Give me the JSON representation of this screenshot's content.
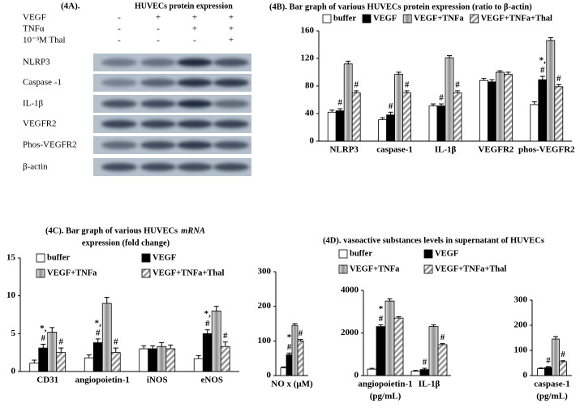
{
  "blot": {
    "label": "(4A).",
    "heading": "HUVECs  protein expression",
    "conditions": [
      {
        "name": "VEGF",
        "signs": [
          "-",
          "+",
          "+",
          "+"
        ]
      },
      {
        "name": "TNFα",
        "signs": [
          "-",
          "-",
          "+",
          "+"
        ]
      },
      {
        "name": "10⁻³M Thal",
        "signs": [
          "-",
          "-",
          "-",
          "+"
        ]
      }
    ],
    "bands": [
      "NLRP3",
      "Caspase -1",
      "IL-1β",
      "VEGFR2",
      "Phos-VEGFR2",
      "β-actin"
    ]
  },
  "chart_data": [
    {
      "type": "bar",
      "title": "(4B). Bar graph of various  HUVECs protein expression (ratio to β-actin)",
      "categories": [
        "NLRP3",
        "caspase-1",
        "IL-1β",
        "VEGFR2",
        "phos-VEGFR2"
      ],
      "ylim": [
        0,
        160
      ],
      "yticks": [
        0,
        40,
        80,
        120,
        160
      ],
      "legend": "top-row",
      "series": [
        {
          "name": "buffer",
          "color": "#ffffff",
          "fill": "solid",
          "values": [
            42,
            31,
            51,
            88,
            53
          ],
          "errors": [
            3,
            3,
            3,
            3,
            4
          ]
        },
        {
          "name": "VEGF",
          "color": "#000000",
          "fill": "solid",
          "values": [
            44,
            38,
            51,
            86,
            89
          ],
          "errors": [
            3,
            4,
            3,
            3,
            5
          ],
          "significance": [
            [
              "#"
            ],
            [
              "#"
            ],
            [
              "#"
            ],
            null,
            [
              "*,",
              "#"
            ]
          ]
        },
        {
          "name": "VEGF+TNFa",
          "color": "#8c8c8c",
          "fill": "shaded",
          "values": [
            112,
            97,
            121,
            100,
            146
          ],
          "errors": [
            4,
            3,
            3,
            2,
            4
          ]
        },
        {
          "name": "VEGF+TNFa+Thal",
          "color": "#9a9a9a",
          "fill": "hatched",
          "values": [
            70,
            70,
            70,
            97,
            79
          ],
          "errors": [
            3,
            3,
            3,
            3,
            3
          ],
          "significance": [
            [
              "#"
            ],
            [
              "#"
            ],
            [
              "#"
            ],
            null,
            [
              "#"
            ]
          ]
        }
      ]
    },
    {
      "type": "bar",
      "title": "(4C). Bar graph of various  HUVECs",
      "title_emphasis": "mRNA",
      "title_line2": "expression (fold change)",
      "categories": [
        "CD31",
        "angiopoietin-1",
        "iNOS",
        "eNOS"
      ],
      "ylim": [
        0,
        15
      ],
      "yticks": [
        0,
        5,
        10,
        15
      ],
      "legend": "top-grid",
      "series": [
        {
          "name": "buffer",
          "color": "#ffffff",
          "fill": "solid",
          "values": [
            1.1,
            1.8,
            3.0,
            1.7
          ],
          "errors": [
            0.4,
            0.4,
            0.4,
            0.4
          ]
        },
        {
          "name": "VEGF",
          "color": "#000000",
          "fill": "solid",
          "values": [
            3.1,
            3.8,
            3.0,
            5.0
          ],
          "errors": [
            0.5,
            0.5,
            0.4,
            0.5
          ],
          "significance": [
            [
              "*,",
              "#"
            ],
            [
              "*,",
              "#"
            ],
            null,
            [
              "*,",
              "#"
            ]
          ]
        },
        {
          "name": "VEGF+TNFa",
          "color": "#8c8c8c",
          "fill": "shaded",
          "values": [
            5.2,
            9.0,
            3.3,
            8.0
          ],
          "errors": [
            0.6,
            0.8,
            0.5,
            0.6
          ]
        },
        {
          "name": "VEGF+TNFa+Thal",
          "color": "#9a9a9a",
          "fill": "hatched",
          "values": [
            2.5,
            2.5,
            3.0,
            3.3
          ],
          "errors": [
            0.6,
            0.6,
            0.5,
            0.6
          ],
          "significance": [
            [
              "#"
            ],
            [
              "#"
            ],
            null,
            [
              "#"
            ]
          ]
        }
      ]
    },
    {
      "type": "bar",
      "categories": [
        "NO x (μM)"
      ],
      "ylim": [
        0,
        300
      ],
      "yticks": [
        0,
        100,
        200,
        300
      ],
      "series": [
        {
          "name": "buffer",
          "color": "#ffffff",
          "fill": "solid",
          "values": [
            22
          ],
          "errors": [
            3
          ]
        },
        {
          "name": "VEGF",
          "color": "#000000",
          "fill": "solid",
          "values": [
            60
          ],
          "errors": [
            5
          ],
          "significance": [
            [
              "*",
              "#"
            ]
          ]
        },
        {
          "name": "VEGF+TNFa",
          "color": "#8c8c8c",
          "fill": "shaded",
          "values": [
            145
          ],
          "errors": [
            5
          ]
        },
        {
          "name": "VEGF+TNFa+Thal",
          "color": "#9a9a9a",
          "fill": "hatched",
          "values": [
            100
          ],
          "errors": [
            4
          ],
          "significance": [
            [
              "#"
            ]
          ]
        }
      ]
    },
    {
      "type": "bar",
      "title": "(4D). vasoactive substances  levels in supernatant of  HUVECs",
      "categories": [
        "angiopoietin-1",
        "IL-1β"
      ],
      "xlabel": "(pg/mL)",
      "ylim": [
        0,
        4000
      ],
      "yticks": [
        0,
        2000,
        4000
      ],
      "legend": "top-grid",
      "series": [
        {
          "name": "buffer",
          "color": "#ffffff",
          "fill": "solid",
          "values": [
            300,
            200
          ],
          "errors": [
            40,
            40
          ]
        },
        {
          "name": "VEGF",
          "color": "#000000",
          "fill": "solid",
          "values": [
            2300,
            280
          ],
          "errors": [
            80,
            60
          ],
          "significance": [
            [
              "*",
              "#"
            ],
            [
              "#"
            ]
          ]
        },
        {
          "name": "VEGF+TNFa",
          "color": "#8c8c8c",
          "fill": "shaded",
          "values": [
            3500,
            2300
          ],
          "errors": [
            100,
            80
          ]
        },
        {
          "name": "VEGF+TNFa+Thal",
          "color": "#9a9a9a",
          "fill": "hatched",
          "values": [
            2700,
            1450
          ],
          "errors": [
            60,
            50
          ],
          "significance": [
            null,
            [
              "#"
            ]
          ]
        }
      ]
    },
    {
      "type": "bar",
      "categories": [
        "caspase-1"
      ],
      "xlabel": "(pg/mL)",
      "ylim": [
        0,
        300
      ],
      "yticks": [
        0,
        100,
        200,
        300
      ],
      "series": [
        {
          "name": "buffer",
          "color": "#ffffff",
          "fill": "solid",
          "values": [
            27
          ],
          "errors": [
            3
          ]
        },
        {
          "name": "VEGF",
          "color": "#000000",
          "fill": "solid",
          "values": [
            32
          ],
          "errors": [
            4
          ],
          "significance": [
            [
              "#"
            ]
          ]
        },
        {
          "name": "VEGF+TNFa",
          "color": "#8c8c8c",
          "fill": "shaded",
          "values": [
            145
          ],
          "errors": [
            10
          ]
        },
        {
          "name": "VEGF+TNFa+Thal",
          "color": "#9a9a9a",
          "fill": "hatched",
          "values": [
            55
          ],
          "errors": [
            4
          ],
          "significance": [
            [
              "#"
            ]
          ]
        }
      ]
    }
  ]
}
